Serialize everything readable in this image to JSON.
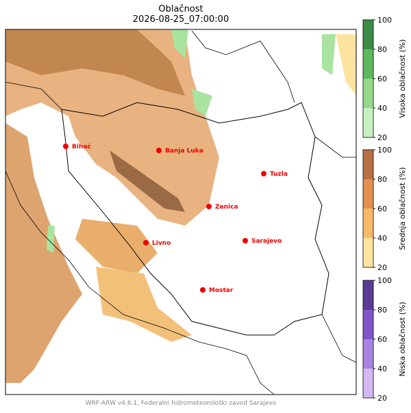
{
  "title": "Oblačnost",
  "subtitle": "2026-08-25_07:00:00",
  "cities": [
    "Bihać",
    "Banja Luka",
    "Tuzla",
    "Zenica",
    "Livno",
    "Sarajevo",
    "Mostar"
  ],
  "colorbars": [
    {
      "label": "Visoka oblačnost (%)",
      "ticks": [
        20,
        40,
        60,
        80,
        100
      ],
      "colors": [
        "#c7f0c0",
        "#95d88a",
        "#5cb85c",
        "#3d8b47"
      ]
    },
    {
      "label": "Srednja oblačnost (%)",
      "ticks": [
        20,
        40,
        60,
        80,
        100
      ],
      "colors": [
        "#fde3a0",
        "#f8b96b",
        "#e4914f",
        "#b87045"
      ]
    },
    {
      "label": "Niska oblačnost (%)",
      "ticks": [
        20,
        40,
        60,
        80,
        100
      ],
      "colors": [
        "#d4b8f2",
        "#a882e0",
        "#7f55c7",
        "#5a3c95"
      ]
    }
  ],
  "footer": "WRF-ARW v4.6.1, Federalni hidrometeorološki zavod Sarajevo"
}
